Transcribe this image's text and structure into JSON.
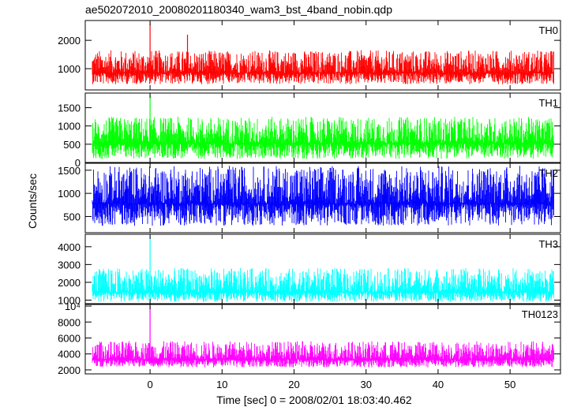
{
  "chart_data": {
    "type": "line",
    "title": "ae502072010_20080201180340_wam3_bst_4band_nobin.qdp",
    "xlabel": "Time [sec] 0 = 2008/02/01 18:03:40.462",
    "ylabel": "Counts/sec",
    "xlim": [
      -9,
      57
    ],
    "x_ticks": [
      0,
      10,
      20,
      30,
      40,
      50
    ],
    "x_data_range": [
      -8,
      56
    ],
    "grid": false,
    "panels": [
      {
        "name": "TH0",
        "color": "#ff0000",
        "ylim": [
          250,
          2700
        ],
        "y_ticks": [
          1000,
          2000
        ],
        "y_tick_labels": [
          "1000",
          "2000"
        ],
        "baseline": 850,
        "noise_low": 450,
        "noise_high": 1650,
        "spikes": [
          {
            "x": 0.0,
            "y": 2600
          },
          {
            "x": 5.2,
            "y": 2200
          }
        ]
      },
      {
        "name": "TH1",
        "color": "#00ff00",
        "ylim": [
          0,
          1900
        ],
        "y_ticks": [
          0,
          500,
          1000,
          1500
        ],
        "y_tick_labels": [
          "0",
          "500",
          "1000",
          "1500"
        ],
        "baseline": 520,
        "noise_low": 100,
        "noise_high": 1250,
        "spikes": [
          {
            "x": 0.0,
            "y": 1850
          }
        ]
      },
      {
        "name": "TH2",
        "color": "#0000ff",
        "ylim": [
          150,
          1650
        ],
        "y_ticks": [
          500,
          1000,
          1500
        ],
        "y_tick_labels": [
          "500",
          "1000",
          "1500"
        ],
        "baseline": 780,
        "noise_low": 300,
        "noise_high": 1600,
        "spikes": []
      },
      {
        "name": "TH3",
        "color": "#00ffff",
        "ylim": [
          800,
          4700
        ],
        "y_ticks": [
          1000,
          2000,
          3000,
          4000
        ],
        "y_tick_labels": [
          "1000",
          "2000",
          "3000",
          "4000"
        ],
        "baseline": 1450,
        "noise_low": 900,
        "noise_high": 2800,
        "spikes": [
          {
            "x": 0.0,
            "y": 4600
          }
        ]
      },
      {
        "name": "TH0123",
        "color": "#ff00ff",
        "ylim": [
          1500,
          10200
        ],
        "y_ticks": [
          2000,
          4000,
          6000,
          8000,
          10000
        ],
        "y_tick_labels": [
          "2000",
          "4000",
          "6000",
          "8000",
          "10⁴"
        ],
        "baseline": 3300,
        "noise_low": 2300,
        "noise_high": 5600,
        "spikes": [
          {
            "x": 0.0,
            "y": 10000
          }
        ]
      }
    ]
  }
}
